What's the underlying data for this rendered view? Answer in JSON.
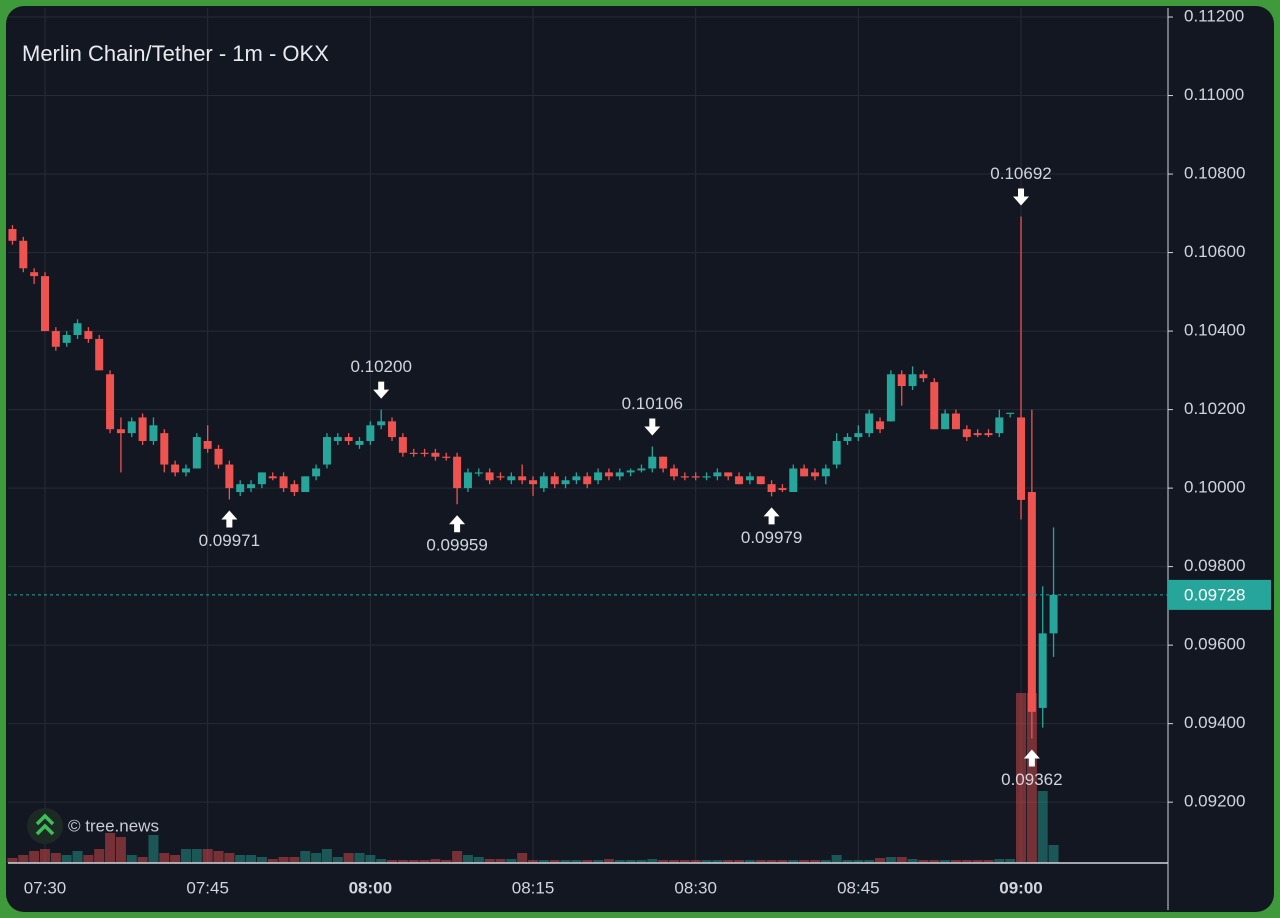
{
  "chart_data": {
    "type": "candlestick",
    "title": "Merlin Chain/Tether - 1m - OKX",
    "watermark": "© tree.news",
    "up_color": "#26a69a",
    "down_color": "#ef5350",
    "grid": true,
    "x": [
      "07:27",
      "07:28",
      "07:29",
      "07:30",
      "07:31",
      "07:32",
      "07:33",
      "07:34",
      "07:35",
      "07:36",
      "07:37",
      "07:38",
      "07:39",
      "07:40",
      "07:41",
      "07:42",
      "07:43",
      "07:44",
      "07:45",
      "07:46",
      "07:47",
      "07:48",
      "07:49",
      "07:50",
      "07:51",
      "07:52",
      "07:53",
      "07:54",
      "07:55",
      "07:56",
      "07:57",
      "07:58",
      "07:59",
      "08:00",
      "08:01",
      "08:02",
      "08:03",
      "08:04",
      "08:05",
      "08:06",
      "08:07",
      "08:08",
      "08:09",
      "08:10",
      "08:11",
      "08:12",
      "08:13",
      "08:14",
      "08:15",
      "08:16",
      "08:17",
      "08:18",
      "08:19",
      "08:20",
      "08:21",
      "08:22",
      "08:23",
      "08:24",
      "08:25",
      "08:26",
      "08:27",
      "08:28",
      "08:29",
      "08:30",
      "08:31",
      "08:32",
      "08:33",
      "08:34",
      "08:35",
      "08:36",
      "08:37",
      "08:38",
      "08:39",
      "08:40",
      "08:41",
      "08:42",
      "08:43",
      "08:44",
      "08:45",
      "08:46",
      "08:47",
      "08:48",
      "08:49",
      "08:50",
      "08:51",
      "08:52",
      "08:53",
      "08:54",
      "08:55",
      "08:56",
      "08:57",
      "08:58",
      "08:59",
      "09:00",
      "09:01",
      "09:02",
      "09:03"
    ],
    "open": [
      0.1066,
      0.1063,
      0.1055,
      0.1054,
      0.104,
      0.1037,
      0.1039,
      0.104,
      0.1038,
      0.1029,
      0.1015,
      0.1014,
      0.1018,
      0.1012,
      0.1014,
      0.1006,
      0.1004,
      0.1005,
      0.1012,
      0.101,
      0.1006,
      0.0999,
      0.1,
      0.1001,
      0.1003,
      0.1003,
      0.1001,
      0.0999,
      0.1003,
      0.1006,
      0.1012,
      0.1013,
      0.1011,
      0.1012,
      0.1016,
      0.1017,
      0.1013,
      0.1009,
      0.1009,
      0.1009,
      0.1008,
      0.1008,
      0.1,
      0.10038,
      0.1004,
      0.1003,
      0.1002,
      0.1003,
      0.1002,
      0.1,
      0.1003,
      0.1001,
      0.1002,
      0.1003,
      0.1002,
      0.1004,
      0.1003,
      0.1004,
      0.10045,
      0.1005,
      0.1008,
      0.1005,
      0.1003,
      0.1003,
      0.10028,
      0.1003,
      0.1004,
      0.1003,
      0.1002,
      0.1003,
      0.1001,
      0.1,
      0.0999,
      0.1005,
      0.1004,
      0.1003,
      0.1006,
      0.1012,
      0.1013,
      0.1014,
      0.1017,
      0.1017,
      0.1029,
      0.1026,
      0.1029,
      0.1027,
      0.1015,
      0.1019,
      0.1015,
      0.1014,
      0.1014,
      0.1014,
      0.1019,
      0.1018,
      0.0999,
      0.0944,
      0.0963
    ],
    "high": [
      0.1067,
      0.1064,
      0.1056,
      0.1055,
      0.1041,
      0.104,
      0.1043,
      0.1041,
      0.1039,
      0.103,
      0.1018,
      0.1018,
      0.1019,
      0.1018,
      0.1015,
      0.1007,
      0.1006,
      0.1014,
      0.1016,
      0.1011,
      0.1007,
      0.1002,
      0.1002,
      0.1004,
      0.1004,
      0.1004,
      0.1002,
      0.1003,
      0.1006,
      0.1014,
      0.1014,
      0.1014,
      0.1013,
      0.1017,
      0.102,
      0.1018,
      0.1014,
      0.101,
      0.101,
      0.101,
      0.1009,
      0.1009,
      0.1005,
      0.1005,
      0.1005,
      0.1004,
      0.1004,
      0.1006,
      0.1003,
      0.1004,
      0.1004,
      0.1003,
      0.1004,
      0.1004,
      0.1005,
      0.1005,
      0.1005,
      0.1005,
      0.1006,
      0.10106,
      0.1008,
      0.1006,
      0.1004,
      0.1004,
      0.1004,
      0.1005,
      0.1004,
      0.1004,
      0.1004,
      0.1003,
      0.1002,
      0.1001,
      0.1006,
      0.1006,
      0.1005,
      0.1006,
      0.1014,
      0.1014,
      0.1016,
      0.102,
      0.1018,
      0.103,
      0.103,
      0.1031,
      0.103,
      0.1028,
      0.102,
      0.102,
      0.1016,
      0.1015,
      0.1015,
      0.102,
      0.1019,
      0.10692,
      0.102,
      0.0975,
      0.099
    ],
    "low": [
      0.1062,
      0.1055,
      0.1052,
      0.104,
      0.1035,
      0.1036,
      0.1038,
      0.1037,
      0.103,
      0.1014,
      0.1004,
      0.1013,
      0.1011,
      0.1011,
      0.1004,
      0.1003,
      0.1003,
      0.1005,
      0.1009,
      0.1005,
      0.09971,
      0.0998,
      0.0999,
      0.1,
      0.1002,
      0.0999,
      0.0998,
      0.0999,
      0.1002,
      0.1005,
      0.1011,
      0.1011,
      0.101,
      0.1011,
      0.1015,
      0.1012,
      0.1008,
      0.1008,
      0.1008,
      0.1007,
      0.1007,
      0.09959,
      0.0999,
      0.1003,
      0.1001,
      0.1002,
      0.1001,
      0.1001,
      0.0998,
      0.0999,
      0.1,
      0.1,
      0.1001,
      0.1,
      0.1001,
      0.1002,
      0.1002,
      0.1003,
      0.1004,
      0.1004,
      0.1004,
      0.1002,
      0.1002,
      0.1002,
      0.1002,
      0.1002,
      0.1002,
      0.1001,
      0.1001,
      0.1001,
      0.09979,
      0.0999,
      0.0999,
      0.1003,
      0.1002,
      0.1001,
      0.1005,
      0.1011,
      0.1012,
      0.1013,
      0.1014,
      0.1017,
      0.1021,
      0.1025,
      0.1027,
      0.1015,
      0.1015,
      0.1015,
      0.1012,
      0.1013,
      0.1013,
      0.1013,
      0.1018,
      0.0992,
      0.09362,
      0.0939,
      0.0957
    ],
    "close": [
      0.1063,
      0.1056,
      0.1054,
      0.104,
      0.1036,
      0.1039,
      0.1042,
      0.1038,
      0.103,
      0.1015,
      0.1014,
      0.1017,
      0.1012,
      0.1016,
      0.1006,
      0.1004,
      0.1005,
      0.1013,
      0.101,
      0.1006,
      0.1,
      0.1001,
      0.1001,
      0.1004,
      0.10025,
      0.1,
      0.0999,
      0.1003,
      0.1005,
      0.1013,
      0.1013,
      0.1012,
      0.1012,
      0.1016,
      0.1017,
      0.1013,
      0.1009,
      0.10088,
      0.10088,
      0.1008,
      0.10078,
      0.1,
      0.1004,
      0.1004,
      0.1002,
      0.10028,
      0.1003,
      0.1002,
      0.1001,
      0.1003,
      0.1001,
      0.1002,
      0.1003,
      0.1001,
      0.1004,
      0.1003,
      0.1004,
      0.10045,
      0.1005,
      0.1008,
      0.1005,
      0.1003,
      0.10028,
      0.10028,
      0.1003,
      0.1004,
      0.1003,
      0.1001,
      0.1003,
      0.1001,
      0.0999,
      0.09995,
      0.1005,
      0.1003,
      0.1003,
      0.1005,
      0.1012,
      0.1013,
      0.1014,
      0.1019,
      0.1015,
      0.1029,
      0.1026,
      0.1029,
      0.1028,
      0.1015,
      0.1019,
      0.1015,
      0.1013,
      0.10135,
      0.10135,
      0.1018,
      0.10192,
      0.0997,
      0.0943,
      0.0963,
      0.09728
    ],
    "volume": [
      5,
      8,
      12,
      14,
      10,
      8,
      12,
      8,
      14,
      30,
      26,
      8,
      6,
      28,
      10,
      8,
      14,
      14,
      14,
      12,
      10,
      8,
      8,
      6,
      4,
      6,
      6,
      12,
      10,
      14,
      6,
      10,
      10,
      8,
      4,
      3,
      3,
      3,
      3,
      4,
      3,
      12,
      8,
      6,
      4,
      4,
      4,
      10,
      3,
      3,
      3,
      3,
      3,
      3,
      3,
      4,
      3,
      3,
      3,
      4,
      3,
      3,
      3,
      3,
      3,
      3,
      3,
      3,
      3,
      3,
      3,
      3,
      3,
      3,
      3,
      3,
      8,
      3,
      3,
      3,
      5,
      6,
      6,
      4,
      3,
      3,
      3,
      3,
      3,
      3,
      3,
      4,
      4,
      170,
      170,
      72,
      18
    ],
    "ylim": [
      0.09045,
      0.11223
    ],
    "yticks": [
      {
        "value": 0.092,
        "label": "0.09200"
      },
      {
        "value": 0.094,
        "label": "0.09400"
      },
      {
        "value": 0.096,
        "label": "0.09600"
      },
      {
        "value": 0.098,
        "label": "0.09800"
      },
      {
        "value": 0.1,
        "label": "0.10000"
      },
      {
        "value": 0.102,
        "label": "0.10200"
      },
      {
        "value": 0.104,
        "label": "0.10400"
      },
      {
        "value": 0.106,
        "label": "0.10600"
      },
      {
        "value": 0.108,
        "label": "0.10800"
      },
      {
        "value": 0.11,
        "label": "0.11000"
      },
      {
        "value": 0.112,
        "label": "0.11200"
      }
    ],
    "xticks": [
      "07:30",
      "07:45",
      "08:00",
      "08:15",
      "08:30",
      "08:45",
      "09:00"
    ],
    "annotations": [
      {
        "x": "07:47",
        "value": 0.09971,
        "label": "0.09971",
        "kind": "low"
      },
      {
        "x": "08:01",
        "value": 0.102,
        "label": "0.10200",
        "kind": "high"
      },
      {
        "x": "08:08",
        "value": 0.09959,
        "label": "0.09959",
        "kind": "low"
      },
      {
        "x": "08:26",
        "value": 0.10106,
        "label": "0.10106",
        "kind": "high"
      },
      {
        "x": "08:37",
        "value": 0.09979,
        "label": "0.09979",
        "kind": "low"
      },
      {
        "x": "09:00",
        "value": 0.10692,
        "label": "0.10692",
        "kind": "high"
      },
      {
        "x": "09:01",
        "value": 0.09362,
        "label": "0.09362",
        "kind": "low"
      }
    ]
  }
}
